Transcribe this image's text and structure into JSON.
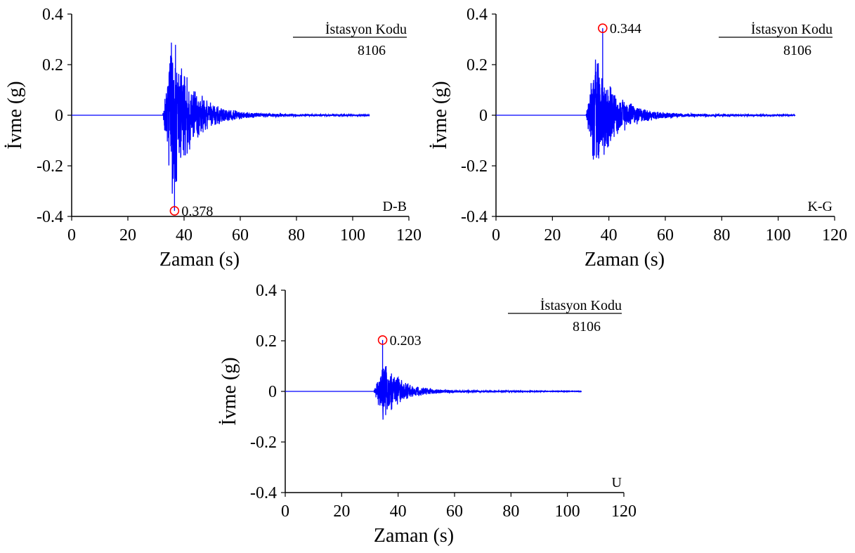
{
  "chart_data": [
    {
      "type": "line",
      "xlabel": "Zaman (s)",
      "ylabel": "İvme (g)",
      "xlim": [
        0,
        120
      ],
      "ylim": [
        -0.4,
        0.4
      ],
      "xticks": [
        "0",
        "20",
        "40",
        "60",
        "80",
        "100",
        "120"
      ],
      "yticks": [
        "-0.4",
        "-0.2",
        "0",
        "0.2",
        "0.4"
      ],
      "station_title": "İstasyon Kodu",
      "station_code": "8106",
      "component": "D-B",
      "peak": {
        "t": 36.6,
        "value": -0.378,
        "label": "0.378"
      },
      "series_color": "#0000ff",
      "marker_color": "#ff0000",
      "record": {
        "start": 0,
        "end": 106,
        "onset": 32.5,
        "seed": 11,
        "max_pos": 0.335,
        "max_neg": -0.31,
        "decay": 7,
        "coda": 0.012
      }
    },
    {
      "type": "line",
      "xlabel": "Zaman (s)",
      "ylabel": "İvme (g)",
      "xlim": [
        0,
        120
      ],
      "ylim": [
        -0.4,
        0.4
      ],
      "xticks": [
        "0",
        "20",
        "40",
        "60",
        "80",
        "100",
        "120"
      ],
      "yticks": [
        "-0.4",
        "-0.2",
        "0",
        "0.2",
        "0.4"
      ],
      "station_title": "İstasyon Kodu",
      "station_code": "8106",
      "component": "K-G",
      "peak": {
        "t": 37.8,
        "value": 0.344,
        "label": "0.344"
      },
      "series_color": "#0000ff",
      "marker_color": "#ff0000",
      "record": {
        "start": 0,
        "end": 106,
        "onset": 32.0,
        "seed": 29,
        "max_pos": 0.22,
        "max_neg": -0.25,
        "decay": 7,
        "coda": 0.012
      }
    },
    {
      "type": "line",
      "xlabel": "Zaman (s)",
      "ylabel": "İvme (g)",
      "xlim": [
        0,
        120
      ],
      "ylim": [
        -0.4,
        0.4
      ],
      "xticks": [
        "0",
        "20",
        "40",
        "60",
        "80",
        "100",
        "120"
      ],
      "yticks": [
        "-0.4",
        "-0.2",
        "0",
        "0.2",
        "0.4"
      ],
      "station_title": "İstasyon Kodu",
      "station_code": "8106",
      "component": "U",
      "peak": {
        "t": 34.5,
        "value": 0.203,
        "label": "0.203"
      },
      "series_color": "#0000ff",
      "marker_color": "#ff0000",
      "record": {
        "start": 0,
        "end": 105,
        "onset": 31.5,
        "seed": 47,
        "max_pos": 0.1,
        "max_neg": -0.15,
        "decay": 6,
        "coda": 0.006
      }
    }
  ]
}
